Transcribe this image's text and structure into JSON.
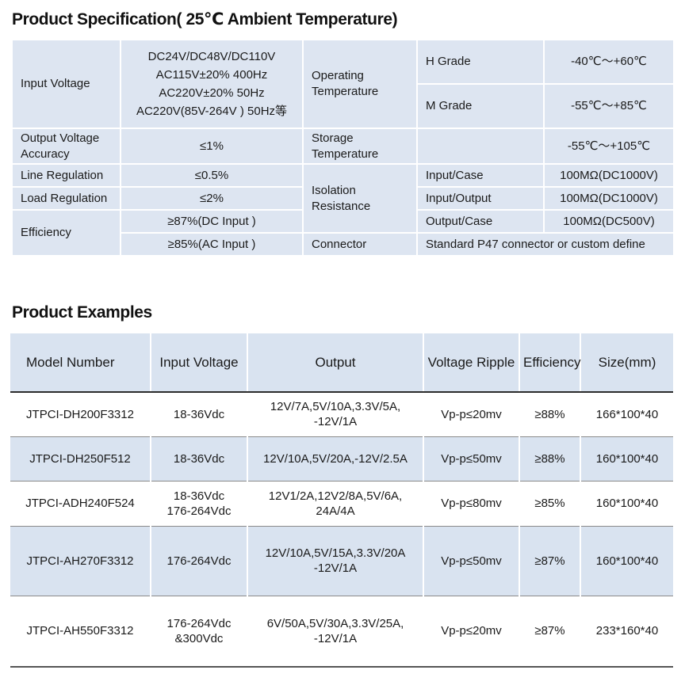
{
  "spec_title": "Product Specification( 25℃ Ambient Temperature)",
  "spec": {
    "input_voltage_label": "Input Voltage",
    "input_voltage_values": [
      "DC24V/DC48V/DC110V",
      "AC115V±20%  400Hz",
      "AC220V±20%  50Hz",
      "AC220V(85V-264V ) 50Hz等"
    ],
    "operating_temp_label": "Operating Temperature",
    "h_grade_label": "H Grade",
    "h_grade_value": "-40℃～+60℃",
    "m_grade_label": "M Grade",
    "m_grade_value": "-55℃～+85℃",
    "output_accuracy_label": "Output Voltage Accuracy",
    "output_accuracy_value": "≤1%",
    "storage_temp_label": "Storage Temperature",
    "storage_temp_value": "-55℃～+105℃",
    "line_regulation_label": "Line Regulation",
    "line_regulation_value": "≤0.5%",
    "isolation_label": "Isolation Resistance",
    "input_case_label": "Input/Case",
    "input_case_value": "100MΩ(DC1000V)",
    "load_regulation_label": "Load Regulation",
    "load_regulation_value": "≤2%",
    "input_output_label": "Input/Output",
    "input_output_value": "100MΩ(DC1000V)",
    "efficiency_label": "Efficiency",
    "efficiency_dc": "≥87%(DC Input )",
    "output_case_label": "Output/Case",
    "output_case_value": "100MΩ(DC500V)",
    "efficiency_ac": "≥85%(AC Input )",
    "connector_label": "Connector",
    "connector_value": "Standard P47 connector or custom define"
  },
  "examples_title": "Product Examples",
  "examples": {
    "headers": [
      "Model Number",
      "Input Voltage",
      "Output",
      "Voltage Ripple",
      "Efficiency",
      "Size(mm)"
    ],
    "rows": [
      {
        "model": "JTPCI-DH200F3312",
        "input": [
          "18-36Vdc"
        ],
        "output": [
          "12V/7A,5V/10A,3.3V/5A,",
          "-12V/1A"
        ],
        "ripple": "Vp-p≤20mv",
        "efficiency": "≥88%",
        "size": "166*100*40"
      },
      {
        "model": "JTPCI-DH250F512",
        "input": [
          "18-36Vdc"
        ],
        "output": [
          "12V/10A,5V/20A,-12V/2.5A"
        ],
        "ripple": "Vp-p≤50mv",
        "efficiency": "≥88%",
        "size": "160*100*40"
      },
      {
        "model": "JTPCI-ADH240F524",
        "input": [
          "18-36Vdc",
          "176-264Vdc"
        ],
        "output": [
          "12V1/2A,12V2/8A,5V/6A,",
          "24A/4A"
        ],
        "ripple": "Vp-p≤80mv",
        "efficiency": "≥85%",
        "size": "160*100*40"
      },
      {
        "model": "JTPCI-AH270F3312",
        "input": [
          "176-264Vdc"
        ],
        "output": [
          "12V/10A,5V/15A,3.3V/20A",
          "-12V/1A"
        ],
        "ripple": "Vp-p≤50mv",
        "efficiency": "≥87%",
        "size": "160*100*40"
      },
      {
        "model": "JTPCI-AH550F3312",
        "input": [
          "176-264Vdc",
          "&300Vdc"
        ],
        "output": [
          "6V/50A,5V/30A,3.3V/25A,",
          "-12V/1A"
        ],
        "ripple": "Vp-p≤20mv",
        "efficiency": "≥87%",
        "size": "233*160*40"
      }
    ]
  }
}
